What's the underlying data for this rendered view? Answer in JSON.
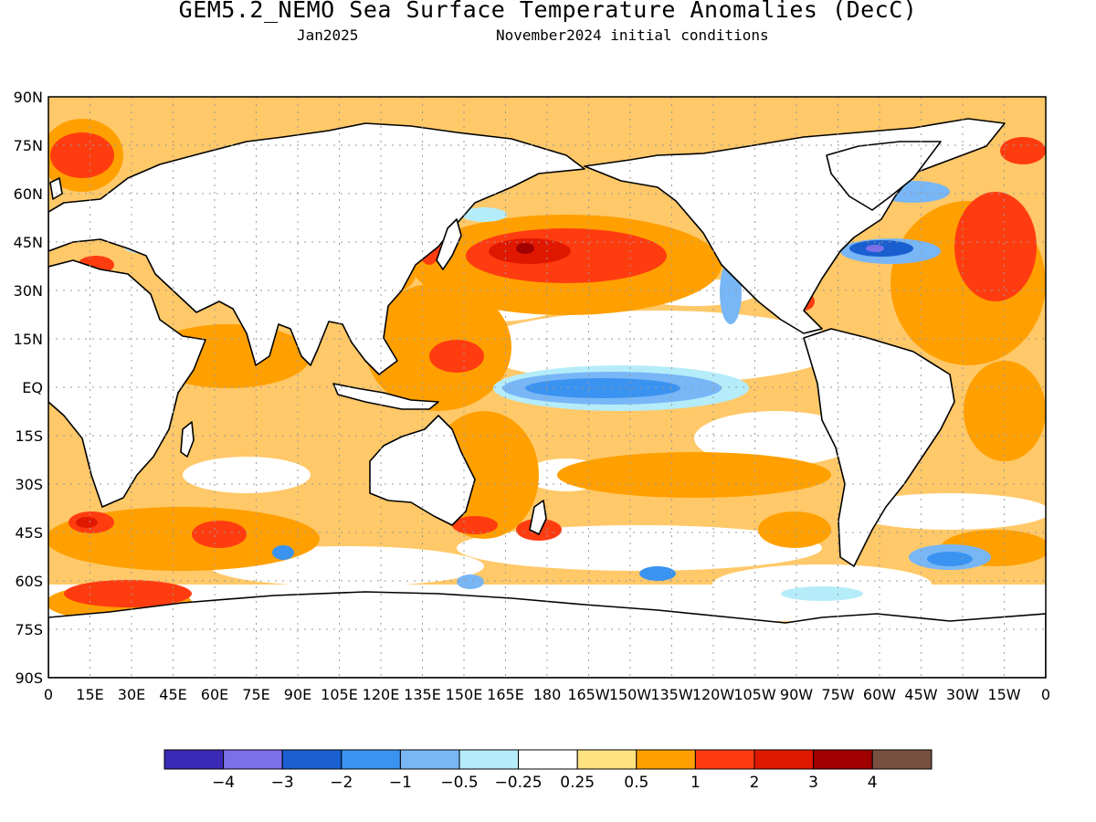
{
  "title": "GEM5.2_NEMO Sea Surface Temperature Anomalies (DecC)",
  "subtitle_left": "Jan2025",
  "subtitle_right": "November2024 initial conditions",
  "axes": {
    "lat_labels": [
      "90N",
      "75N",
      "60N",
      "45N",
      "30N",
      "15N",
      "EQ",
      "15S",
      "30S",
      "45S",
      "60S",
      "75S",
      "90S"
    ],
    "lon_labels": [
      "0",
      "15E",
      "30E",
      "45E",
      "60E",
      "75E",
      "90E",
      "105E",
      "120E",
      "135E",
      "150E",
      "165E",
      "180",
      "165W",
      "150W",
      "135W",
      "120W",
      "105W",
      "90W",
      "75W",
      "60W",
      "45W",
      "30W",
      "15W",
      "0"
    ]
  },
  "colorbar": {
    "colors": [
      "#3b2ab5",
      "#7d6ee9",
      "#1a5fd0",
      "#3a93f0",
      "#78b6f6",
      "#b5ecfa",
      "#ffffff",
      "#ffe380",
      "#ffa000",
      "#ff3c10",
      "#e01800",
      "#a00000",
      "#785040"
    ],
    "labels": [
      "−4",
      "−3",
      "−2",
      "−1",
      "−0.5",
      "−0.25",
      "0.25",
      "0.5",
      "1",
      "2",
      "3",
      "4"
    ]
  },
  "map": {
    "ocean_default": "#ffc868",
    "land": "#ffffff",
    "coast": "#000000",
    "grid_color": "#9a9a9a"
  }
}
